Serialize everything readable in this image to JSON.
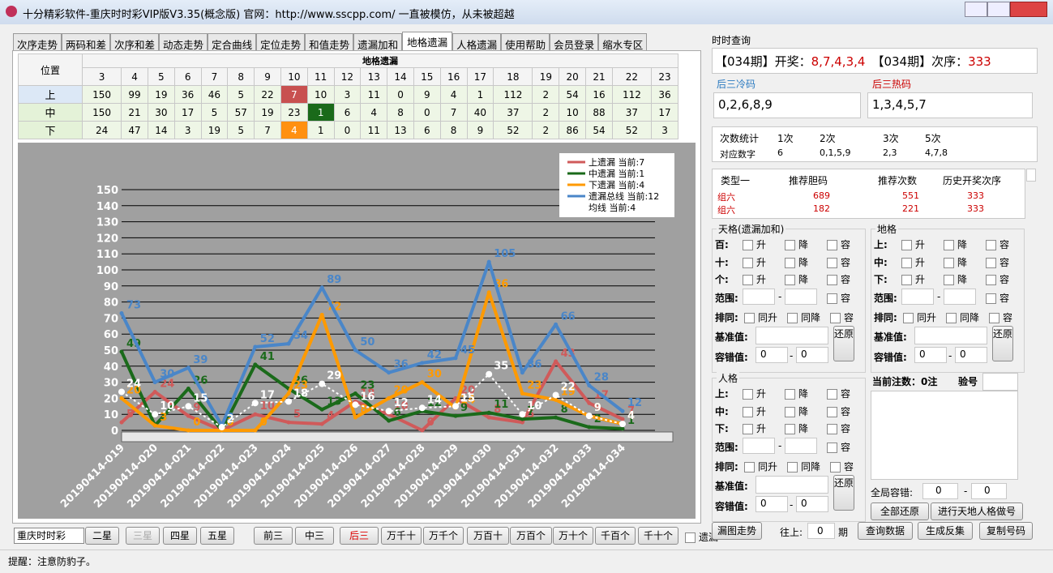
{
  "window": {
    "title": "十分精彩软件-重庆时时彩VIP版V3.35(概念版) 官网：http://www.sscpp.com/ 一直被模仿，从未被超越"
  },
  "tabs": [
    "次序走势",
    "两码和差",
    "次序和差",
    "动态走势",
    "定合曲线",
    "定位走势",
    "和值走势",
    "遗漏加和",
    "地格遗漏",
    "人格遗漏",
    "使用帮助",
    "会员登录",
    "缩水专区"
  ],
  "grid": {
    "header": "位置",
    "title": "地格遗漏",
    "columns": [
      3,
      4,
      5,
      6,
      7,
      8,
      9,
      10,
      11,
      12,
      13,
      14,
      15,
      16,
      17,
      18,
      19,
      20,
      21,
      22,
      23
    ],
    "rows": [
      {
        "label": "上",
        "values": [
          150,
          99,
          19,
          36,
          46,
          5,
          22,
          7,
          10,
          3,
          11,
          0,
          9,
          4,
          1,
          112,
          2,
          54,
          16,
          112,
          36
        ]
      },
      {
        "label": "中",
        "values": [
          150,
          21,
          30,
          17,
          5,
          57,
          19,
          23,
          1,
          6,
          4,
          8,
          0,
          7,
          40,
          37,
          2,
          10,
          88,
          37,
          17
        ]
      },
      {
        "label": "下",
        "values": [
          24,
          47,
          14,
          3,
          19,
          5,
          7,
          4,
          1,
          0,
          11,
          13,
          6,
          8,
          9,
          52,
          2,
          86,
          54,
          52,
          3
        ]
      }
    ]
  },
  "chart_data": {
    "type": "line",
    "categories": [
      "20190414-019",
      "20190414-020",
      "20190414-021",
      "20190414-022",
      "20190414-023",
      "20190414-024",
      "20190414-025",
      "20190414-026",
      "20190414-027",
      "20190414-028",
      "20190414-029",
      "20190414-030",
      "20190414-031",
      "20190414-032",
      "20190414-033",
      "20190414-034"
    ],
    "ylim": [
      0,
      150
    ],
    "yticks": [
      0,
      10,
      20,
      30,
      40,
      50,
      60,
      70,
      80,
      90,
      100,
      110,
      120,
      130,
      140,
      150
    ],
    "grid": true,
    "series": [
      {
        "name": "上遗漏 当前:7",
        "color": "#d05a5a",
        "values": [
          5,
          24,
          9,
          0,
          10,
          5,
          4,
          18,
          10,
          0,
          20,
          8,
          5,
          43,
          17,
          7
        ]
      },
      {
        "name": "中遗漏 当前:1",
        "color": "#1a6a1a",
        "values": [
          49,
          3,
          26,
          0,
          41,
          26,
          13,
          23,
          6,
          12,
          9,
          11,
          7,
          8,
          2,
          1
        ]
      },
      {
        "name": "下遗漏 当前:4",
        "color": "#ff9a00",
        "values": [
          20,
          3,
          0,
          0,
          0,
          23,
          72,
          8,
          20,
          30,
          14,
          86,
          23,
          19,
          9,
          4
        ]
      },
      {
        "name": "遗漏总线 当前:12",
        "color": "#4a86c8",
        "values": [
          73,
          30,
          39,
          3,
          52,
          54,
          89,
          50,
          36,
          42,
          45,
          105,
          36,
          66,
          28,
          12
        ]
      },
      {
        "name": "均线 当前:4",
        "color": "#ffffff",
        "values": [
          24,
          10,
          15,
          2,
          17,
          18,
          29,
          16,
          12,
          14,
          15,
          35,
          10,
          22,
          9,
          4
        ]
      }
    ]
  },
  "bottom": {
    "lottery": "重庆时时彩",
    "buttons": [
      "二星",
      "三星",
      "四星",
      "五星",
      "前三",
      "中三",
      "后三",
      "万千十",
      "万千个",
      "万百十",
      "万百个",
      "万十个",
      "千百个",
      "千十个"
    ],
    "check": "遗漏"
  },
  "right": {
    "time_label": "时时查询",
    "draw_prefix": "【034期】开奖：",
    "draw_numbers": "8,7,4,3,4",
    "order_prefix": "【034期】次序：",
    "order_value": "333",
    "cold": {
      "label": "后三冷码",
      "value": "0,2,6,8,9"
    },
    "hot": {
      "label": "后三热码",
      "value": "1,3,4,5,7"
    },
    "stats": {
      "header": [
        "次数统计",
        "1次",
        "2次",
        "3次",
        "5次"
      ],
      "row": [
        "对应数字",
        "6",
        "0,1,5,9",
        "2,3",
        "4,7,8"
      ]
    },
    "recommend": {
      "header": [
        "类型一",
        "推荐胆码",
        "推荐次数",
        "历史开奖次序"
      ],
      "rows": [
        [
          "组六",
          "689",
          "551",
          "333"
        ],
        [
          "组六",
          "182",
          "221",
          "333"
        ]
      ]
    },
    "panels": [
      {
        "title": "天格(遗漏加和)",
        "rows": [
          "百:",
          "十:",
          "个:"
        ]
      },
      {
        "title": "地格",
        "rows": [
          "上:",
          "中:",
          "下:"
        ]
      },
      {
        "title": "人格",
        "rows": [
          "上:",
          "中:",
          "下:"
        ]
      }
    ],
    "options": [
      "升",
      "降",
      "容"
    ],
    "range_label": "范围:",
    "same_label": "排同:",
    "same_options": [
      "同升",
      "同降",
      "容"
    ],
    "base_label": "基准值:",
    "tolerance_label": "容错值:",
    "tolerance": [
      "0",
      "0"
    ],
    "separator": "-",
    "reset": "还原",
    "bets": "当前注数：0注",
    "verify": "验号",
    "global_label": "全局容错:",
    "global": [
      "0",
      "0"
    ],
    "reset_all": "全部还原",
    "make": "进行天地人格做号",
    "trend": "漏图走势",
    "up_label": "往上:",
    "up_value": "0",
    "period": "期",
    "query": "查询数据",
    "inverse": "生成反集",
    "copy": "复制号码"
  },
  "status": "提醒：注意防豹子。"
}
